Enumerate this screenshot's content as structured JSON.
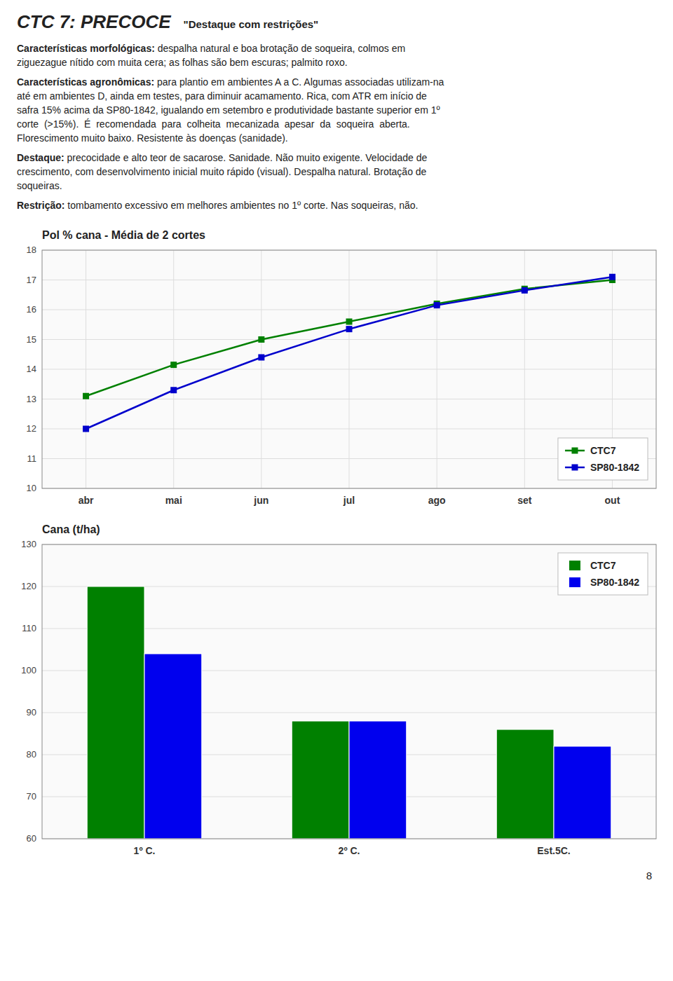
{
  "title": "CTC 7: PRECOCE",
  "subtitle": "\"Destaque com restrições\"",
  "text_blocks": [
    {
      "label": "Características morfológicas:",
      "text": " despalha natural e boa brotação de soqueira, colmos em\nziguezague nítido com muita cera; as folhas são bem escuras; palmito roxo."
    },
    {
      "label": "Características agronômicas:",
      "text": " para plantio em ambientes A a C. Algumas associadas utilizam-na\naté em ambientes D, ainda em testes, para diminuir acamamento. Rica, com ATR em início de\nsafra 15% acima da SP80-1842, igualando em setembro e produtividade bastante superior em 1º\ncorte  (>15%).  É  recomendada  para  colheita  mecanizada  apesar  da  soqueira  aberta.\nFlorescimento muito baixo. Resistente às doenças (sanidade)."
    },
    {
      "label": "Destaque:",
      "text": " precocidade e alto teor de sacarose. Sanidade. Não muito exigente. Velocidade de\ncrescimento, com desenvolvimento inicial muito rápido (visual). Despalha natural. Brotação de\nsoqueiras."
    },
    {
      "label": "Restrição:",
      "text": " tombamento excessivo em melhores ambientes no 1º corte. Nas soqueiras, não."
    }
  ],
  "page_number": "8",
  "chart_data": [
    {
      "type": "line",
      "title": "Pol % cana - Média de 2 cortes",
      "categories": [
        "abr",
        "mai",
        "jun",
        "jul",
        "ago",
        "set",
        "out"
      ],
      "series": [
        {
          "name": "CTC7",
          "color": "#008000",
          "marker": "square",
          "values": [
            13.1,
            14.15,
            15.0,
            15.6,
            16.2,
            16.7,
            17.0
          ]
        },
        {
          "name": "SP80-1842",
          "color": "#0000CC",
          "marker": "square",
          "values": [
            12.0,
            13.3,
            14.4,
            15.35,
            16.15,
            16.65,
            17.1
          ]
        }
      ],
      "ylim": [
        10,
        18
      ],
      "yticks": [
        10,
        11,
        12,
        13,
        14,
        15,
        16,
        17,
        18
      ],
      "grid": true,
      "legend": "lower right"
    },
    {
      "type": "bar",
      "title": "Cana (t/ha)",
      "categories": [
        "1º C.",
        "2º C.",
        "Est.5C."
      ],
      "series": [
        {
          "name": "CTC7",
          "color": "#008000",
          "values": [
            120,
            88,
            86
          ]
        },
        {
          "name": "SP80-1842",
          "color": "#0000EE",
          "values": [
            104,
            88,
            82
          ]
        }
      ],
      "ylim": [
        60,
        130
      ],
      "yticks": [
        60,
        70,
        80,
        90,
        100,
        110,
        120,
        130
      ],
      "grid": "y",
      "legend": "upper right"
    }
  ]
}
